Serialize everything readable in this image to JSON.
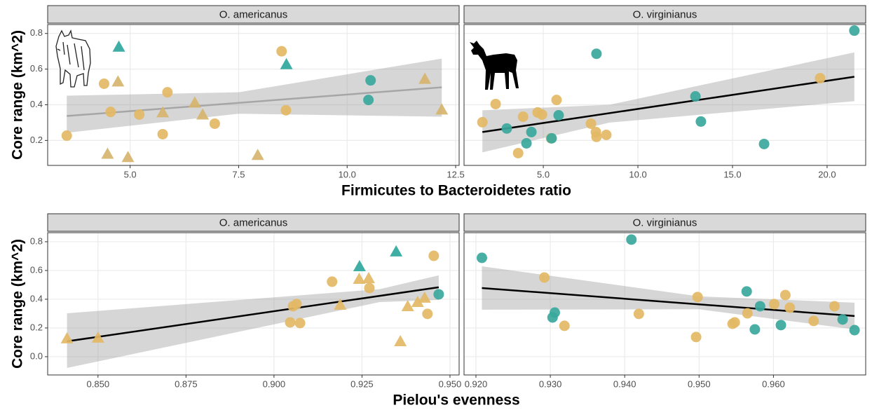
{
  "chart_data": [
    {
      "type": "scatter",
      "title": "O. americanus",
      "ylabel": "Core range (km^2)",
      "xlabel": "Firmicutes to Bacteroidetes ratio",
      "xlim": [
        3.1,
        12.58
      ],
      "ylim": [
        0.06,
        0.85
      ],
      "xticks": [
        {
          "value": 5,
          "label": "5.0"
        },
        7.5,
        {
          "value": 10,
          "label": "10.0"
        },
        12.5
      ],
      "yticks": [
        0.2,
        0.4,
        0.6,
        0.8
      ],
      "show_ytick_labels": true,
      "grid": true,
      "series": [
        {
          "color": "#e3b865",
          "marker": "circle",
          "x": [
            3.54,
            4.4,
            4.55,
            5.21,
            5.75,
            5.86,
            6.95,
            8.49,
            8.59
          ],
          "values": [
            0.227,
            0.518,
            0.36,
            0.345,
            0.235,
            0.47,
            0.294,
            0.7,
            0.369
          ]
        },
        {
          "color": "#d6b46e",
          "marker": "triangle",
          "x": [
            4.48,
            4.72,
            4.95,
            5.75,
            6.49,
            6.67,
            7.94,
            11.79,
            12.18
          ],
          "values": [
            0.125,
            0.53,
            0.106,
            0.357,
            0.412,
            0.345,
            0.118,
            0.545,
            0.373
          ]
        },
        {
          "color": "#3aa89c",
          "marker": "circle",
          "x": [
            10.54,
            10.49
          ],
          "values": [
            0.537,
            0.427
          ]
        },
        {
          "color": "#2fa89e",
          "marker": "triangle",
          "x": [
            4.74,
            8.6
          ],
          "values": [
            0.725,
            0.627
          ]
        }
      ],
      "fit": {
        "color": "#a6a6a6",
        "x": [
          3.54,
          12.18
        ],
        "values": [
          0.337,
          0.498
        ]
      },
      "band": {
        "x": [
          3.54,
          7.5,
          12.18
        ],
        "lower": [
          0.243,
          0.35,
          0.333
        ],
        "upper": [
          0.451,
          0.47,
          0.659
        ]
      }
    },
    {
      "type": "scatter",
      "title": "O. virginianus",
      "xlim": [
        0.81,
        22.04
      ],
      "ylim": [
        0.06,
        0.85
      ],
      "xticks": [
        {
          "value": 5,
          "label": "5.0"
        },
        {
          "value": 10,
          "label": "10.0"
        },
        {
          "value": 15,
          "label": "15.0"
        },
        {
          "value": 20,
          "label": "20.0"
        }
      ],
      "yticks": [
        0.2,
        0.4,
        0.6,
        0.8
      ],
      "show_ytick_labels": false,
      "grid": true,
      "series": [
        {
          "color": "#e3b865",
          "marker": "circle",
          "x": [
            1.78,
            2.48,
            3.93,
            3.67,
            4.7,
            4.93,
            5.41,
            5.7,
            7.52,
            7.78,
            7.81,
            8.33,
            19.63
          ],
          "values": [
            0.302,
            0.404,
            0.333,
            0.129,
            0.357,
            0.345,
            0.212,
            0.427,
            0.294,
            0.247,
            0.22,
            0.231,
            0.549
          ]
        },
        {
          "color": "#3aa89c",
          "marker": "circle",
          "x": [
            3.07,
            4.37,
            4.11,
            5.44,
            5.81,
            7.81,
            13.04,
            13.33,
            16.67,
            21.44
          ],
          "values": [
            0.267,
            0.247,
            0.184,
            0.212,
            0.341,
            0.686,
            0.447,
            0.306,
            0.18,
            0.816
          ]
        }
      ],
      "fit": {
        "color": "#000000",
        "x": [
          1.78,
          21.44
        ],
        "values": [
          0.247,
          0.557
        ]
      },
      "band": {
        "x": [
          1.78,
          8.5,
          21.44
        ],
        "lower": [
          0.133,
          0.3,
          0.42
        ],
        "upper": [
          0.369,
          0.4,
          0.694
        ]
      }
    },
    {
      "type": "scatter",
      "title": "O. americanus",
      "ylabel": "Core range (km^2)",
      "xlabel": "Pielou's evenness",
      "xlim": [
        0.8357,
        0.9526
      ],
      "ylim": [
        -0.127,
        0.863
      ],
      "xticks": [
        {
          "value": 0.85,
          "label": "0.850"
        },
        0.875,
        {
          "value": 0.9,
          "label": "0.900"
        },
        0.925,
        {
          "value": 0.95,
          "label": "0.950"
        }
      ],
      "yticks": [
        {
          "value": 0,
          "label": "0.0"
        },
        0.2,
        0.4,
        0.6,
        0.8
      ],
      "show_ytick_labels": true,
      "grid": true,
      "series": [
        {
          "color": "#e3b865",
          "marker": "circle",
          "x": [
            0.9165,
            0.9046,
            0.9054,
            0.9064,
            0.9074,
            0.9271,
            0.9436,
            0.9454
          ],
          "values": [
            0.522,
            0.239,
            0.351,
            0.366,
            0.234,
            0.478,
            0.298,
            0.702
          ]
        },
        {
          "color": "#e3b865",
          "marker": "triangle",
          "x": [
            0.8412,
            0.85,
            0.9188,
            0.9242,
            0.9269,
            0.938,
            0.9408,
            0.9428,
            0.9359
          ],
          "values": [
            0.127,
            0.132,
            0.361,
            0.541,
            0.546,
            0.351,
            0.38,
            0.41,
            0.107
          ]
        },
        {
          "color": "#3aa89c",
          "marker": "circle",
          "x": [
            0.9468
          ],
          "values": [
            0.434
          ]
        },
        {
          "color": "#2fa89e",
          "marker": "triangle",
          "x": [
            0.9243,
            0.9347
          ],
          "values": [
            0.629,
            0.732
          ]
        }
      ],
      "fit": {
        "color": "#000000",
        "x": [
          0.8412,
          0.9468
        ],
        "values": [
          0.107,
          0.483
        ]
      },
      "band": {
        "x": [
          0.8412,
          0.93,
          0.9468
        ],
        "lower": [
          -0.078,
          0.38,
          0.395
        ],
        "upper": [
          0.302,
          0.47,
          0.566
        ]
      }
    },
    {
      "type": "scatter",
      "title": "O. virginianus",
      "xlim": [
        0.9184,
        0.9724
      ],
      "ylim": [
        -0.127,
        0.863
      ],
      "xticks": [
        {
          "value": 0.92,
          "label": "0.920"
        },
        {
          "value": 0.93,
          "label": "0.930"
        },
        {
          "value": 0.94,
          "label": "0.940"
        },
        {
          "value": 0.95,
          "label": "0.950"
        },
        {
          "value": 0.96,
          "label": "0.960"
        }
      ],
      "yticks": [
        0,
        0.2,
        0.4,
        0.6,
        0.8
      ],
      "show_ytick_labels": false,
      "grid": true,
      "series": [
        {
          "color": "#e3b865",
          "marker": "circle",
          "x": [
            0.9292,
            0.9319,
            0.9419,
            0.9498,
            0.9496,
            0.9545,
            0.9548,
            0.9565,
            0.9601,
            0.9616,
            0.9622,
            0.9654,
            0.9682
          ],
          "values": [
            0.551,
            0.215,
            0.298,
            0.415,
            0.137,
            0.229,
            0.239,
            0.302,
            0.366,
            0.429,
            0.341,
            0.249,
            0.351
          ]
        },
        {
          "color": "#3aa89c",
          "marker": "circle",
          "x": [
            0.9208,
            0.9409,
            0.9306,
            0.9303,
            0.9564,
            0.9582,
            0.9575,
            0.961,
            0.9693,
            0.9709
          ],
          "values": [
            0.688,
            0.815,
            0.307,
            0.273,
            0.454,
            0.351,
            0.19,
            0.22,
            0.259,
            0.185
          ]
        }
      ],
      "fit": {
        "color": "#000000",
        "x": [
          0.9208,
          0.9709
        ],
        "values": [
          0.478,
          0.283
        ]
      },
      "band": {
        "x": [
          0.9208,
          0.95,
          0.9709
        ],
        "lower": [
          0.327,
          0.33,
          0.19
        ],
        "upper": [
          0.629,
          0.42,
          0.376
        ]
      }
    }
  ]
}
